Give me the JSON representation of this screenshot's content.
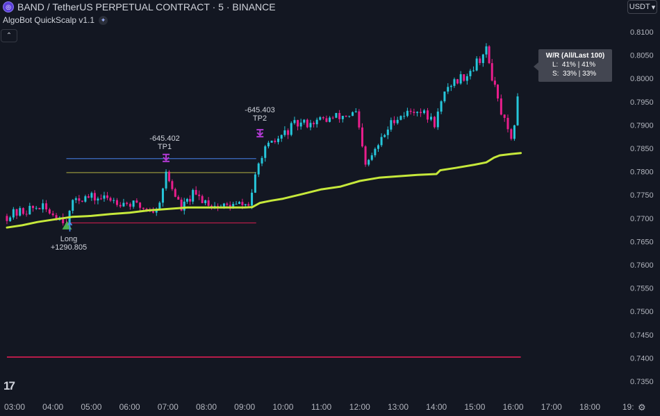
{
  "header": {
    "symbol_title": "BAND / TetherUS PERPETUAL CONTRACT · 5 · BINANCE",
    "indicator_name": "AlgoBot QuickScalp v1.1",
    "currency": "USDT"
  },
  "wr_panel": {
    "title": "W/R (All/Last 100)",
    "long_row": "L:  41% | 41%",
    "short_row": "S:  33% | 33%"
  },
  "trade_labels": {
    "long_title": "Long",
    "long_pnl": "+1290.805",
    "tp1_pnl": "-645.402",
    "tp1_title": "TP1",
    "tp2_pnl": "-645.403",
    "tp2_title": "TP2"
  },
  "colors": {
    "background": "#131722",
    "up_candle": "#26c6da",
    "down_candle": "#e91e8c",
    "trend_line": "#c6e83b",
    "stop_line": "#b71c4a",
    "tp1_line": "#3f6fc7",
    "entry_line": "#8a8a3a",
    "long_marker": "#4caf50",
    "tp_marker": "#b43ad6"
  },
  "chart_data": {
    "type": "candlestick",
    "y_axis": {
      "min": 0.735,
      "max": 0.8105,
      "ticks": [
        0.81,
        0.805,
        0.8,
        0.795,
        0.79,
        0.785,
        0.78,
        0.775,
        0.77,
        0.765,
        0.76,
        0.755,
        0.75,
        0.745,
        0.74,
        0.735
      ],
      "tick_labels": [
        "0.8100",
        "0.8050",
        "0.8000",
        "0.7950",
        "0.7900",
        "0.7850",
        "0.7800",
        "0.7750",
        "0.7700",
        "0.7650",
        "0.7600",
        "0.7550",
        "0.7500",
        "0.7450",
        "0.7400",
        "0.7350"
      ]
    },
    "x_axis": {
      "tick_hours": [
        3,
        4,
        5,
        6,
        7,
        8,
        9,
        10,
        11,
        12,
        13,
        14,
        15,
        16,
        17,
        18,
        19
      ],
      "tick_labels": [
        "03:00",
        "04:00",
        "05:00",
        "06:00",
        "07:00",
        "08:00",
        "09:00",
        "10:00",
        "11:00",
        "12:00",
        "13:00",
        "14:00",
        "15:00",
        "16:00",
        "17:00",
        "18:00",
        "19:"
      ]
    },
    "segments": [
      {
        "start_hour": 2.8,
        "end_hour": 3.65,
        "from": 0.7705,
        "to": 0.7725
      },
      {
        "start_hour": 3.65,
        "end_hour": 4.35,
        "from": 0.7725,
        "to": 0.7695
      },
      {
        "start_hour": 4.35,
        "end_hour": 4.6,
        "from": 0.7695,
        "to": 0.7745
      },
      {
        "start_hour": 4.6,
        "end_hour": 5.5,
        "from": 0.7745,
        "to": 0.7742
      },
      {
        "start_hour": 5.5,
        "end_hour": 6.7,
        "from": 0.7742,
        "to": 0.7715
      },
      {
        "start_hour": 6.7,
        "end_hour": 6.95,
        "from": 0.7715,
        "to": 0.7795
      },
      {
        "start_hour": 6.95,
        "end_hour": 7.35,
        "from": 0.7795,
        "to": 0.772
      },
      {
        "start_hour": 7.35,
        "end_hour": 7.65,
        "from": 0.772,
        "to": 0.775
      },
      {
        "start_hour": 7.65,
        "end_hour": 8.3,
        "from": 0.775,
        "to": 0.7725
      },
      {
        "start_hour": 8.3,
        "end_hour": 9.1,
        "from": 0.7725,
        "to": 0.773
      },
      {
        "start_hour": 9.1,
        "end_hour": 9.45,
        "from": 0.773,
        "to": 0.784
      },
      {
        "start_hour": 9.45,
        "end_hour": 10.3,
        "from": 0.784,
        "to": 0.79
      },
      {
        "start_hour": 10.3,
        "end_hour": 11.3,
        "from": 0.79,
        "to": 0.7915
      },
      {
        "start_hour": 11.3,
        "end_hour": 11.9,
        "from": 0.7915,
        "to": 0.7925
      },
      {
        "start_hour": 11.9,
        "end_hour": 12.15,
        "from": 0.7925,
        "to": 0.781
      },
      {
        "start_hour": 12.15,
        "end_hour": 12.9,
        "from": 0.781,
        "to": 0.7915
      },
      {
        "start_hour": 12.9,
        "end_hour": 13.5,
        "from": 0.7915,
        "to": 0.7935
      },
      {
        "start_hour": 13.5,
        "end_hour": 13.95,
        "from": 0.7935,
        "to": 0.7905
      },
      {
        "start_hour": 13.95,
        "end_hour": 14.3,
        "from": 0.7905,
        "to": 0.7985
      },
      {
        "start_hour": 14.3,
        "end_hour": 14.8,
        "from": 0.7985,
        "to": 0.801
      },
      {
        "start_hour": 14.8,
        "end_hour": 15.3,
        "from": 0.801,
        "to": 0.806
      },
      {
        "start_hour": 15.3,
        "end_hour": 15.6,
        "from": 0.806,
        "to": 0.795
      },
      {
        "start_hour": 15.6,
        "end_hour": 15.95,
        "from": 0.795,
        "to": 0.786
      },
      {
        "start_hour": 15.95,
        "end_hour": 16.2,
        "from": 0.786,
        "to": 0.8
      }
    ],
    "trend_line": [
      [
        2.8,
        0.768
      ],
      [
        3.2,
        0.7685
      ],
      [
        3.6,
        0.7692
      ],
      [
        4.0,
        0.7697
      ],
      [
        4.5,
        0.7703
      ],
      [
        5.0,
        0.7705
      ],
      [
        5.5,
        0.7709
      ],
      [
        6.0,
        0.7712
      ],
      [
        6.5,
        0.7717
      ],
      [
        7.0,
        0.772
      ],
      [
        7.5,
        0.7723
      ],
      [
        8.0,
        0.7723
      ],
      [
        8.5,
        0.7723
      ],
      [
        9.0,
        0.7723
      ],
      [
        9.2,
        0.7724
      ],
      [
        9.4,
        0.7733
      ],
      [
        9.7,
        0.7738
      ],
      [
        10.0,
        0.7742
      ],
      [
        10.5,
        0.7752
      ],
      [
        11.0,
        0.7762
      ],
      [
        11.5,
        0.7768
      ],
      [
        12.0,
        0.778
      ],
      [
        12.5,
        0.7787
      ],
      [
        13.0,
        0.779
      ],
      [
        13.5,
        0.7793
      ],
      [
        14.0,
        0.7795
      ],
      [
        14.1,
        0.7803
      ],
      [
        14.5,
        0.7808
      ],
      [
        15.0,
        0.7815
      ],
      [
        15.3,
        0.782
      ],
      [
        15.5,
        0.783
      ],
      [
        15.65,
        0.7835
      ],
      [
        15.95,
        0.7838
      ],
      [
        16.2,
        0.784
      ]
    ],
    "levels": [
      {
        "name": "tp1",
        "price": 0.7828,
        "start_hour": 4.35,
        "end_hour": 9.3
      },
      {
        "name": "entry",
        "price": 0.7798,
        "start_hour": 4.35,
        "end_hour": 9.3
      },
      {
        "name": "stop",
        "price": 0.769,
        "start_hour": 4.35,
        "end_hour": 9.3
      },
      {
        "name": "lower",
        "price": 0.7402,
        "start_hour": 2.8,
        "end_hour": 16.2
      }
    ],
    "markers": [
      {
        "type": "long",
        "hour": 4.35,
        "price": 0.7685
      },
      {
        "type": "tp1",
        "hour": 6.95,
        "price": 0.7825
      },
      {
        "type": "tp2",
        "hour": 9.4,
        "price": 0.7878
      }
    ]
  }
}
